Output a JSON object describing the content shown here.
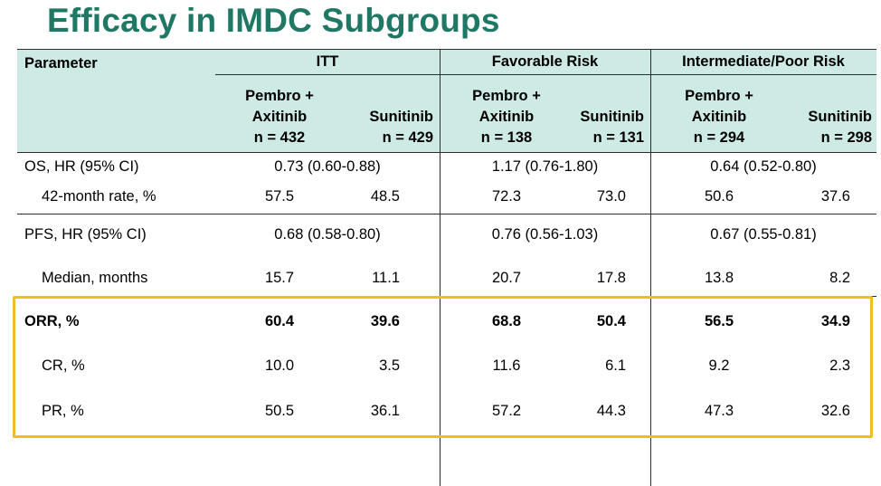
{
  "title": "Efficacy in IMDC Subgroups",
  "table": {
    "param_header": "Parameter",
    "groups": [
      "ITT",
      "Favorable Risk",
      "Intermediate/Poor Risk"
    ],
    "arms": [
      {
        "line1": "Pembro +",
        "line2": "Axitinib",
        "n": "n = 432"
      },
      {
        "line1": "",
        "line2": "Sunitinib",
        "n": "n = 429"
      },
      {
        "line1": "Pembro +",
        "line2": "Axitinib",
        "n": "n = 138"
      },
      {
        "line1": "",
        "line2": "Sunitinib",
        "n": "n = 131"
      },
      {
        "line1": "Pembro +",
        "line2": "Axitinib",
        "n": "n = 294"
      },
      {
        "line1": "",
        "line2": "Sunitinib",
        "n": "n = 298"
      }
    ],
    "rows": {
      "os_hr": {
        "label": "OS, HR (95% CI)",
        "values": [
          "0.73 (0.60-0.88)",
          "1.17 (0.76-1.80)",
          "0.64 (0.52-0.80)"
        ]
      },
      "os_42": {
        "label": "42-month rate, %",
        "values": [
          "57.5",
          "48.5",
          "72.3",
          "73.0",
          "50.6",
          "37.6"
        ]
      },
      "pfs_hr": {
        "label": "PFS, HR (95% CI)",
        "values": [
          "0.68 (0.58-0.80)",
          "0.76 (0.56-1.03)",
          "0.67 (0.55-0.81)"
        ]
      },
      "median": {
        "label": "Median, months",
        "values": [
          "15.7",
          "11.1",
          "20.7",
          "17.8",
          "13.8",
          "8.2"
        ]
      },
      "orr": {
        "label": "ORR, %",
        "values": [
          "60.4",
          "39.6",
          "68.8",
          "50.4",
          "56.5",
          "34.9"
        ]
      },
      "cr": {
        "label": "CR, %",
        "values": [
          "10.0",
          "3.5",
          "11.6",
          "6.1",
          "9.2",
          "2.3"
        ]
      },
      "pr": {
        "label": "PR, %",
        "values": [
          "50.5",
          "36.1",
          "57.2",
          "44.3",
          "47.3",
          "32.6"
        ]
      }
    }
  },
  "colors": {
    "title": "#1f7863",
    "header_fill": "#cdebe4",
    "highlight_border": "#f2bd1f"
  }
}
